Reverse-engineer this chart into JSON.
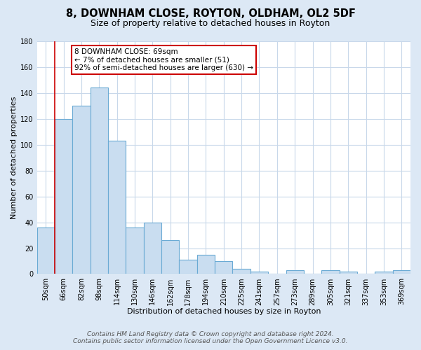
{
  "title": "8, DOWNHAM CLOSE, ROYTON, OLDHAM, OL2 5DF",
  "subtitle": "Size of property relative to detached houses in Royton",
  "xlabel": "Distribution of detached houses by size in Royton",
  "ylabel": "Number of detached properties",
  "bar_labels": [
    "50sqm",
    "66sqm",
    "82sqm",
    "98sqm",
    "114sqm",
    "130sqm",
    "146sqm",
    "162sqm",
    "178sqm",
    "194sqm",
    "210sqm",
    "225sqm",
    "241sqm",
    "257sqm",
    "273sqm",
    "289sqm",
    "305sqm",
    "321sqm",
    "337sqm",
    "353sqm",
    "369sqm"
  ],
  "bar_values": [
    36,
    120,
    130,
    144,
    103,
    36,
    40,
    26,
    11,
    15,
    10,
    4,
    2,
    0,
    3,
    0,
    3,
    2,
    0,
    2,
    3
  ],
  "bar_color": "#c9ddf0",
  "bar_edgecolor": "#6aaad4",
  "vline_color": "#cc0000",
  "ylim": [
    0,
    180
  ],
  "yticks": [
    0,
    20,
    40,
    60,
    80,
    100,
    120,
    140,
    160,
    180
  ],
  "annotation_title": "8 DOWNHAM CLOSE: 69sqm",
  "annotation_line1": "← 7% of detached houses are smaller (51)",
  "annotation_line2": "92% of semi-detached houses are larger (630) →",
  "annotation_box_facecolor": "#ffffff",
  "annotation_box_edgecolor": "#cc0000",
  "footer_line1": "Contains HM Land Registry data © Crown copyright and database right 2024.",
  "footer_line2": "Contains public sector information licensed under the Open Government Licence v3.0.",
  "fig_background_color": "#dce8f5",
  "plot_background_color": "#ffffff",
  "grid_color": "#c8d8ea",
  "title_fontsize": 10.5,
  "subtitle_fontsize": 9,
  "axis_label_fontsize": 8,
  "tick_fontsize": 7,
  "annotation_fontsize": 7.5,
  "footer_fontsize": 6.5
}
